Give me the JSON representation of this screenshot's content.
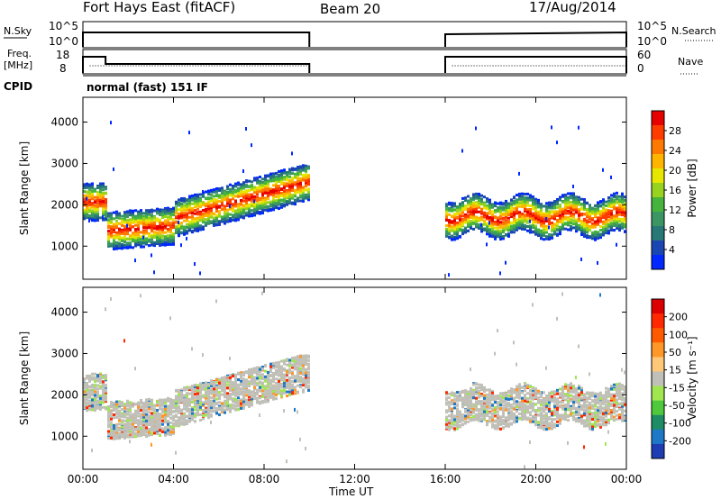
{
  "header": {
    "station": "Fort Hays East (fitACF)",
    "beam": "Beam 20",
    "date": "17/Aug/2014"
  },
  "top_panels": {
    "nsky_label": "N.Sky",
    "nsky_ticks": [
      "10^5",
      "10^0"
    ],
    "nsky_right_ticks": [
      "10^5",
      "10^0"
    ],
    "nsearch_label": "N.Search",
    "freq_label_1": "Freq.",
    "freq_label_2": "[MHz]",
    "freq_ticks": [
      "18",
      "8"
    ],
    "nave_ticks": [
      "60",
      "0"
    ],
    "nave_label": "Nave",
    "cpid_label": "CPID",
    "cpid_text": "normal (fast) 151 IF"
  },
  "colors": {
    "power_scale": [
      "#0028ff",
      "#1a46b4",
      "#287878",
      "#3c9664",
      "#46b43c",
      "#96d21e",
      "#e6e600",
      "#ffb400",
      "#ff7800",
      "#ff3c00",
      "#e60000"
    ],
    "velocity_scale": [
      "#1e3cb4",
      "#1e78c8",
      "#1e8c64",
      "#50c83c",
      "#a0e650",
      "#c0c0b8",
      "#ffc878",
      "#ff9628",
      "#ff5a00",
      "#ff2800",
      "#dc0000"
    ]
  },
  "chart_data": [
    {
      "type": "heatmap",
      "name": "power",
      "ylabel": "Slant Range [km]",
      "yticks": [
        1000,
        2000,
        3000,
        4000
      ],
      "ylim": [
        200,
        4600
      ],
      "xlim_hours": [
        0,
        24
      ],
      "xticks": [
        "00:00",
        "04:00",
        "08:00",
        "12:00",
        "16:00",
        "20:00",
        "00:00"
      ],
      "data_gaps_hours": [
        [
          10,
          16
        ]
      ],
      "colorbar_label": "Power [dB]",
      "colorbar_ticks": [
        "28",
        "24",
        "20",
        "16",
        "12",
        "8",
        "4"
      ]
    },
    {
      "type": "heatmap",
      "name": "velocity",
      "ylabel": "Slant Range [km]",
      "yticks": [
        1000,
        2000,
        3000,
        4000
      ],
      "ylim": [
        200,
        4600
      ],
      "xlim_hours": [
        0,
        24
      ],
      "xticks": [
        "00:00",
        "04:00",
        "08:00",
        "12:00",
        "16:00",
        "20:00",
        "00:00"
      ],
      "xlabel": "Time UT",
      "data_gaps_hours": [
        [
          10,
          16
        ]
      ],
      "colorbar_label": "Velocity [m s⁻¹]",
      "colorbar_ticks": [
        "200",
        "100",
        "50",
        "15",
        "-15",
        "-50",
        "-100",
        "-200"
      ]
    }
  ]
}
